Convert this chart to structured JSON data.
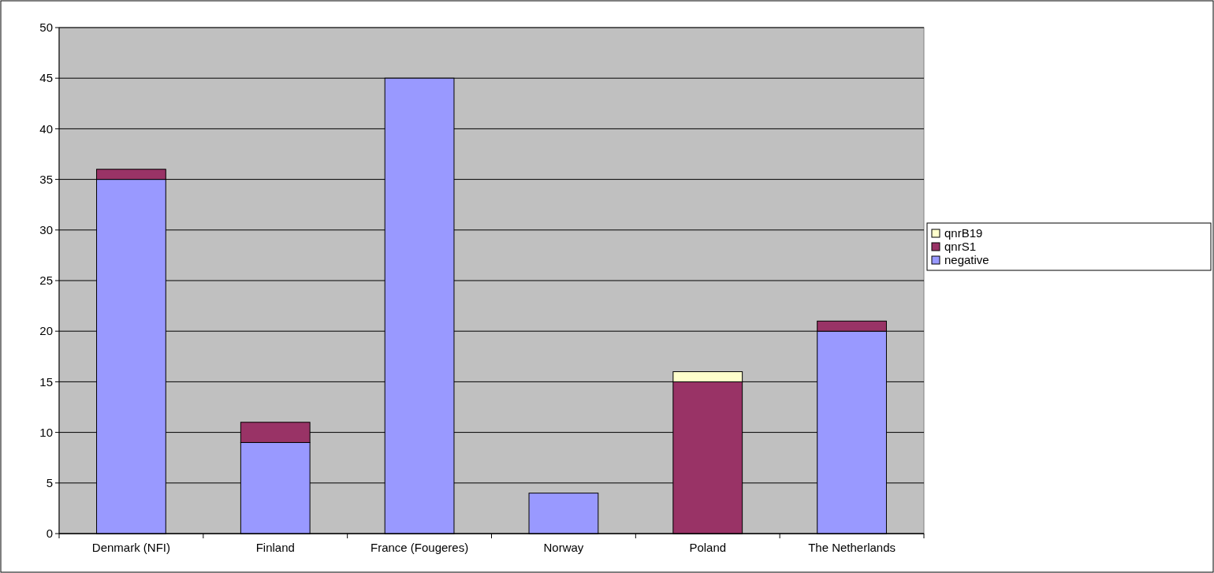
{
  "chart_data": {
    "type": "bar",
    "stacked": true,
    "categories": [
      "Denmark (NFI)",
      "Finland",
      "France (Fougeres)",
      "Norway",
      "Poland",
      "The Netherlands"
    ],
    "series": [
      {
        "name": "negative",
        "color": "#9999ff",
        "values": [
          35,
          9,
          45,
          4,
          0,
          20
        ]
      },
      {
        "name": "qnrS1",
        "color": "#993366",
        "values": [
          1,
          2,
          0,
          0,
          15,
          1
        ]
      },
      {
        "name": "qnrB19",
        "color": "#ffffcc",
        "values": [
          0,
          0,
          0,
          0,
          1,
          0
        ]
      }
    ],
    "ylim": [
      0,
      50
    ],
    "yticks": [
      0,
      5,
      10,
      15,
      20,
      25,
      30,
      35,
      40,
      45,
      50
    ],
    "grid": "y",
    "legend": "right"
  }
}
